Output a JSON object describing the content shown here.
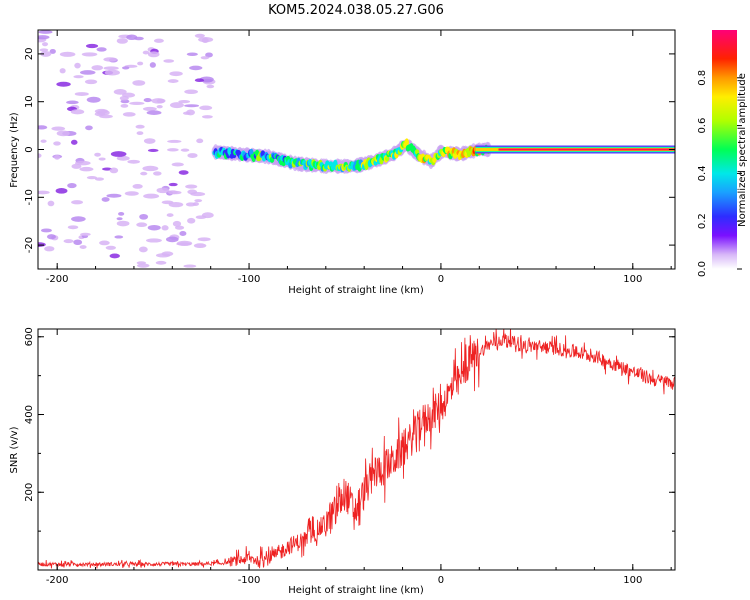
{
  "title": "KOM5.2024.038.05.27.G06",
  "chart_data": [
    {
      "type": "heatmap",
      "title": "KOM5.2024.038.05.27.G06",
      "xlabel": "Height of straight line (km)",
      "ylabel": "Frequency (Hz)",
      "xlim": [
        -210,
        122
      ],
      "ylim": [
        -25,
        25
      ],
      "xticks": [
        -200,
        -100,
        0,
        100
      ],
      "yticks": [
        -20,
        -10,
        0,
        10,
        20
      ],
      "colorbar": {
        "label": "Normalized spectral amplitude",
        "range": [
          0,
          1
        ],
        "ticks": [
          0.0,
          0.2,
          0.4,
          0.6,
          0.8
        ],
        "colormap": "rainbow (violet → blue → cyan → green → yellow → red → magenta)"
      },
      "description_points": {
        "noise_region_x": [
          -210,
          -120
        ],
        "signal_track": [
          {
            "x": -118,
            "y": -0.5
          },
          {
            "x": -105,
            "y": -1.0
          },
          {
            "x": -90,
            "y": -1.5
          },
          {
            "x": -75,
            "y": -3.0
          },
          {
            "x": -60,
            "y": -3.5
          },
          {
            "x": -45,
            "y": -3.5
          },
          {
            "x": -35,
            "y": -2.5
          },
          {
            "x": -25,
            "y": -1.0
          },
          {
            "x": -18,
            "y": 1.0
          },
          {
            "x": -12,
            "y": -1.0
          },
          {
            "x": -5,
            "y": -2.5
          },
          {
            "x": 0,
            "y": -0.5
          },
          {
            "x": 10,
            "y": -1.0
          },
          {
            "x": 20,
            "y": 0.0
          },
          {
            "x": 40,
            "y": 0.0
          },
          {
            "x": 80,
            "y": 0.0
          },
          {
            "x": 122,
            "y": 0.0
          }
        ]
      }
    },
    {
      "type": "line",
      "title": "",
      "xlabel": "Height of straight line (km)",
      "ylabel": "SNR (v/v)",
      "xlim": [
        -210,
        122
      ],
      "ylim": [
        0,
        620
      ],
      "xticks": [
        -200,
        -100,
        0,
        100
      ],
      "yticks": [
        200,
        400,
        600
      ],
      "series": [
        {
          "color": "#ee2222",
          "x": [
            -210,
            -190,
            -170,
            -150,
            -130,
            -115,
            -105,
            -100,
            -95,
            -90,
            -85,
            -80,
            -75,
            -70,
            -65,
            -60,
            -55,
            -50,
            -45,
            -40,
            -35,
            -30,
            -25,
            -20,
            -15,
            -10,
            -5,
            0,
            5,
            10,
            15,
            20,
            25,
            30,
            35,
            40,
            50,
            60,
            70,
            80,
            90,
            100,
            110,
            122
          ],
          "y": [
            15,
            15,
            15,
            15,
            15,
            17,
            25,
            30,
            25,
            30,
            40,
            60,
            70,
            80,
            100,
            120,
            150,
            200,
            150,
            200,
            250,
            260,
            280,
            310,
            340,
            380,
            400,
            420,
            460,
            490,
            540,
            560,
            580,
            590,
            595,
            580,
            575,
            570,
            560,
            550,
            530,
            510,
            490,
            480
          ]
        }
      ]
    }
  ]
}
